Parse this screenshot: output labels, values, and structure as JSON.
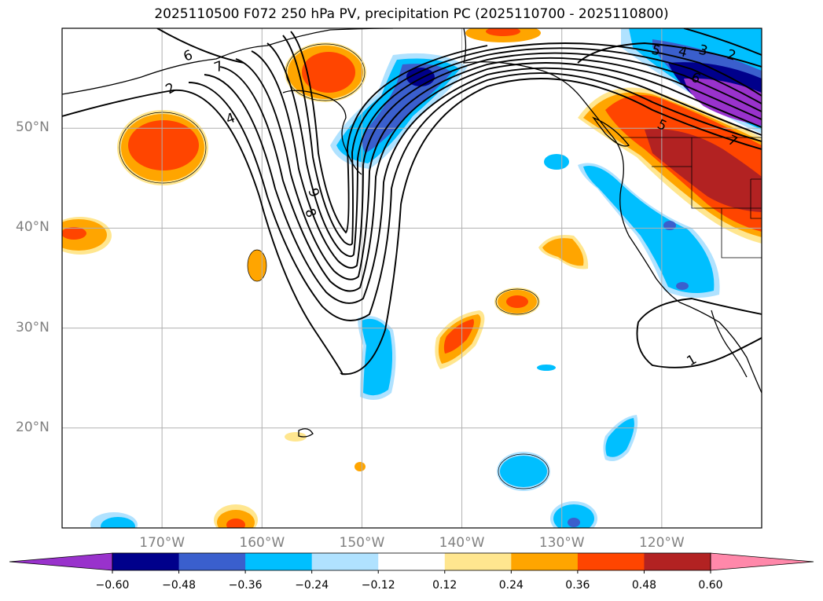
{
  "chart_data": {
    "type": "contour_map",
    "title": "2025110500 F072 250 hPa PV, precipitation PC (2025110700 - 2025110800)",
    "projection": "cylindrical",
    "lon_range": [
      -180,
      -110
    ],
    "lat_range": [
      10,
      60
    ],
    "lat_ticks": [
      {
        "value": 20,
        "label": "20°N"
      },
      {
        "value": 30,
        "label": "30°N"
      },
      {
        "value": 40,
        "label": "40°N"
      },
      {
        "value": 50,
        "label": "50°N"
      }
    ],
    "lon_ticks": [
      {
        "value": -170,
        "label": "170°W"
      },
      {
        "value": -160,
        "label": "160°W"
      },
      {
        "value": -150,
        "label": "150°W"
      },
      {
        "value": -140,
        "label": "140°W"
      },
      {
        "value": -130,
        "label": "130°W"
      },
      {
        "value": -120,
        "label": "120°W"
      }
    ],
    "grid": true,
    "colorbar": {
      "orientation": "horizontal",
      "extend": "both",
      "levels": [
        -0.6,
        -0.48,
        -0.36,
        -0.24,
        -0.12,
        0.12,
        0.24,
        0.36,
        0.48,
        0.6
      ],
      "tick_labels": [
        "−0.60",
        "−0.48",
        "−0.36",
        "−0.24",
        "−0.12",
        "0.12",
        "0.24",
        "0.36",
        "0.48",
        "0.60"
      ],
      "colors": [
        "#9932cc",
        "#00008b",
        "#3a5fcd",
        "#00bfff",
        "#b0e2ff",
        "#ffffff",
        "#ffe68f",
        "#ffa500",
        "#ff4500",
        "#b22222",
        "#ff88aa"
      ]
    },
    "pv_contour_labels": [
      "6",
      "7",
      "2",
      "4",
      "9",
      "8",
      "5",
      "4",
      "3",
      "2",
      "5",
      "6",
      "7",
      "1"
    ],
    "precip_anomalies": [
      {
        "name": "western-pacific-positive-west",
        "lon": -170,
        "lat": 47,
        "value": 0.42
      },
      {
        "name": "aleutian-positive",
        "lon": -155,
        "lat": 56,
        "value": 0.4
      },
      {
        "name": "gulf-of-alaska-negative",
        "lon": -148,
        "lat": 53,
        "value": -0.4
      },
      {
        "name": "date-line-positive",
        "lon": -179,
        "lat": 39,
        "value": 0.4
      },
      {
        "name": "pacific-northwest-positive",
        "lon": -122,
        "lat": 47,
        "value": 0.55
      },
      {
        "name": "canada-negative",
        "lon": -118,
        "lat": 56,
        "value": -0.62
      },
      {
        "name": "california-coast-negative",
        "lon": -122,
        "lat": 38,
        "value": -0.3
      },
      {
        "name": "subtropical-positive-1",
        "lon": -140,
        "lat": 29,
        "value": 0.4
      },
      {
        "name": "subtropical-positive-2",
        "lon": -135,
        "lat": 33,
        "value": 0.38
      },
      {
        "name": "subtropical-positive-3",
        "lon": -130,
        "lat": 38,
        "value": 0.3
      },
      {
        "name": "central-pacific-negative",
        "lon": -149,
        "lat": 26,
        "value": -0.3
      },
      {
        "name": "tropical-negative-1",
        "lon": -134,
        "lat": 16,
        "value": -0.28
      },
      {
        "name": "tropical-negative-2",
        "lon": -123,
        "lat": 19,
        "value": -0.3
      },
      {
        "name": "tropical-negative-3",
        "lon": -130,
        "lat": 11,
        "value": -0.38
      }
    ]
  }
}
